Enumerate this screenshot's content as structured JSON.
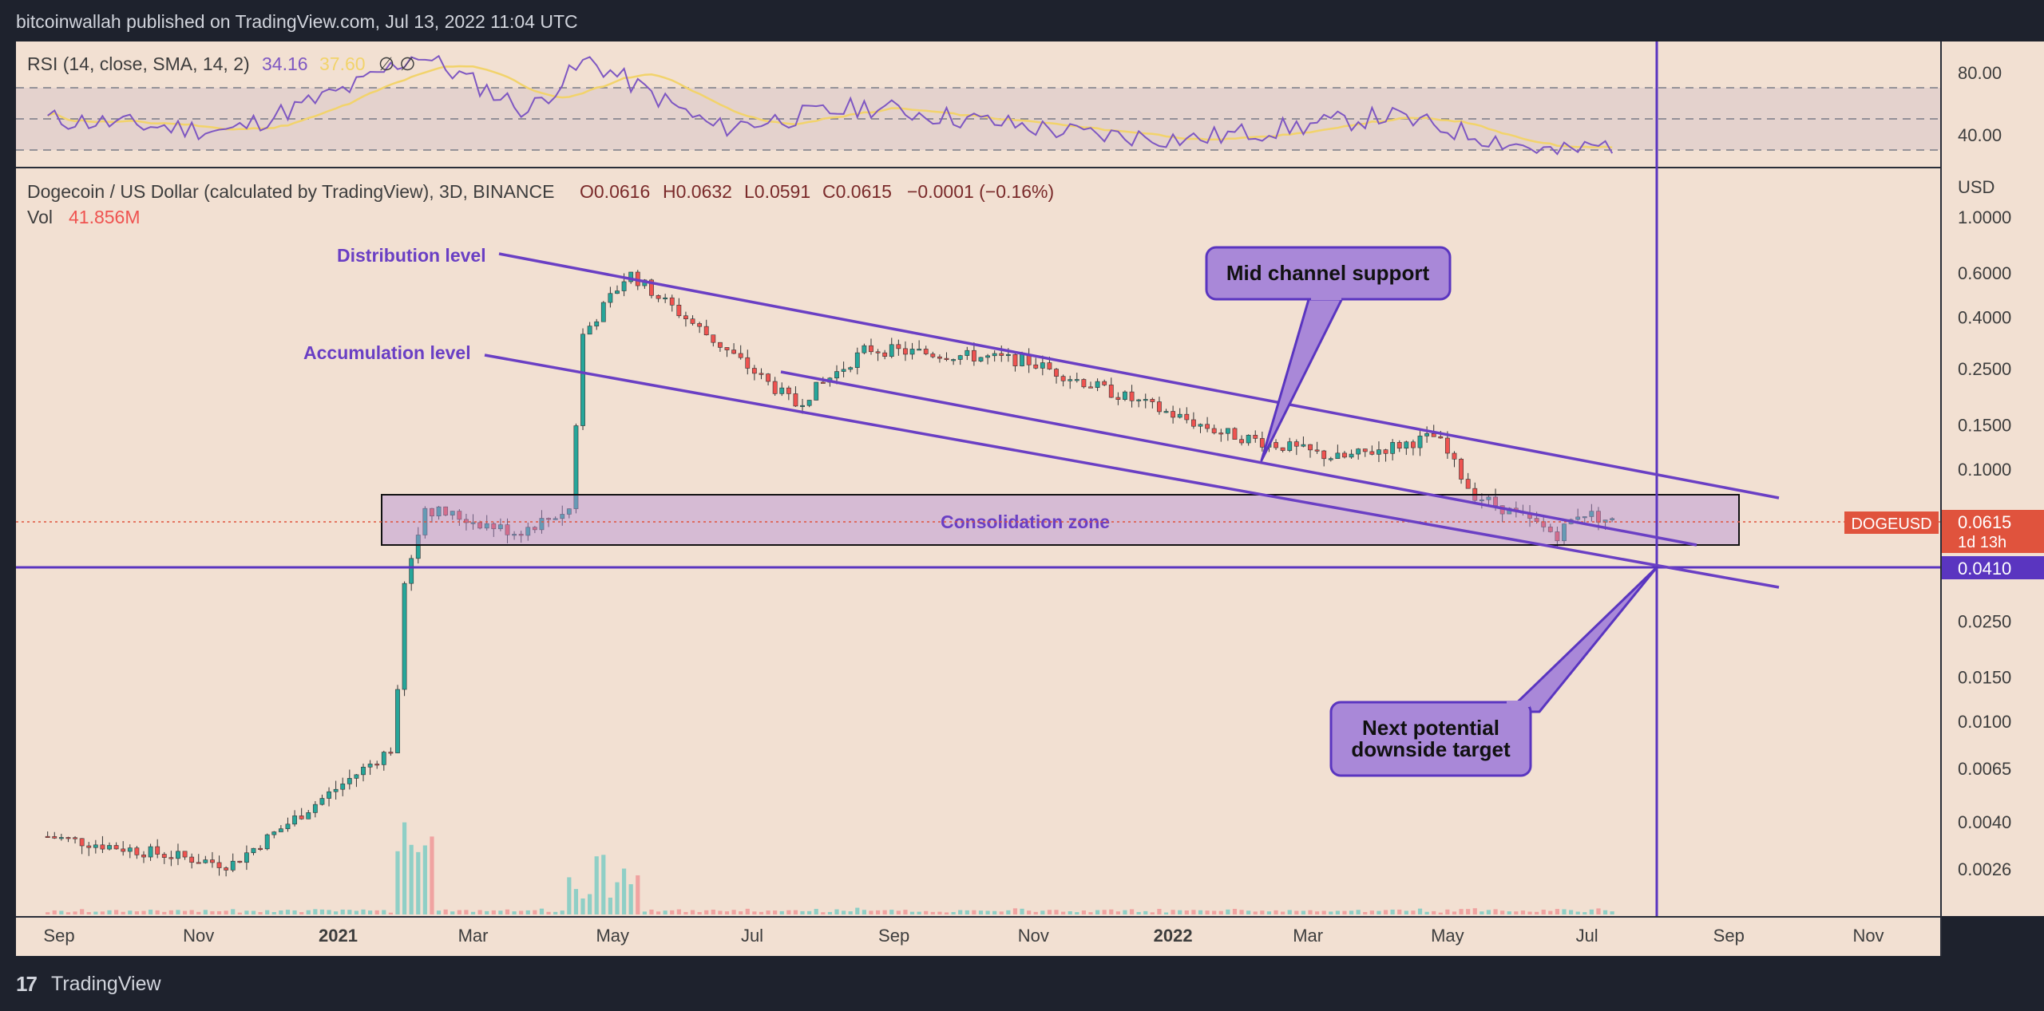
{
  "header": {
    "publisher": "bitcoinwallah published on TradingView.com, Jul 13, 2022 11:04 UTC"
  },
  "footer": {
    "brand": "TradingView"
  },
  "colors": {
    "background": "#f2e0d2",
    "channel": "#6a3fc4",
    "up": "#26a69a",
    "down": "#ef5350",
    "rsi": "#7e57c2",
    "rsi_sma": "#f2d36b",
    "price_tag": "#e0533d",
    "level_tag": "#5a35c0"
  },
  "rsi": {
    "legend_name": "RSI (14, close, SMA, 14, 2)",
    "legend_value": "34.16",
    "legend_sma": "37.60",
    "legend_extra": "∅ ∅",
    "ticks": [
      "80.00",
      "40.00"
    ],
    "levels": [
      70,
      50,
      30
    ]
  },
  "price": {
    "legend_symbol": "Dogecoin / US Dollar (calculated by TradingView), 3D, BINANCE",
    "legend_o": "O0.0616",
    "legend_h": "H0.0632",
    "legend_l": "L0.0591",
    "legend_c": "C0.0615",
    "legend_change": "−0.0001 (−0.16%)",
    "vol_label": "Vol",
    "vol_value": "41.856M",
    "currency": "USD",
    "current_symbol": "DOGEUSD",
    "current_price": "0.0615",
    "countdown": "1d 13h",
    "level_price": "0.0410"
  },
  "annotations": {
    "distribution": "Distribution level",
    "accumulation": "Accumulation level",
    "consolidation": "Consolidation zone",
    "mid_channel": "Mid channel support",
    "target_line1": "Next potential",
    "target_line2": "downside target"
  },
  "chart_data": {
    "type": "candlestick",
    "title": "Dogecoin / US Dollar (calculated by TradingView), 3D, BINANCE",
    "scale": "log",
    "y_ticks": [
      "1.0000",
      "0.6000",
      "0.4000",
      "0.2500",
      "0.1500",
      "0.1000",
      "0.0615",
      "0.0410",
      "0.0250",
      "0.0150",
      "0.0100",
      "0.0065",
      "0.0040",
      "0.0026"
    ],
    "x_ticks": [
      "Sep",
      "Nov",
      "2021",
      "Mar",
      "May",
      "Jul",
      "Sep",
      "Nov",
      "2022",
      "Mar",
      "May",
      "Jul",
      "Sep",
      "Nov"
    ],
    "key_points": [
      {
        "date": "2020-08-27",
        "close": 0.0035
      },
      {
        "date": "2020-11-15",
        "close": 0.0027
      },
      {
        "date": "2021-01-26",
        "close": 0.008
      },
      {
        "date": "2021-01-29",
        "close": 0.032
      },
      {
        "date": "2021-02-08",
        "close": 0.07
      },
      {
        "date": "2021-03-20",
        "close": 0.056
      },
      {
        "date": "2021-04-13",
        "close": 0.07
      },
      {
        "date": "2021-04-17",
        "close": 0.33
      },
      {
        "date": "2021-05-08",
        "close": 0.6
      },
      {
        "date": "2021-07-20",
        "close": 0.18
      },
      {
        "date": "2021-08-20",
        "close": 0.3
      },
      {
        "date": "2021-10-28",
        "close": 0.27
      },
      {
        "date": "2022-01-22",
        "close": 0.14
      },
      {
        "date": "2022-03-15",
        "close": 0.11
      },
      {
        "date": "2022-04-26",
        "close": 0.135
      },
      {
        "date": "2022-05-12",
        "close": 0.08
      },
      {
        "date": "2022-06-18",
        "close": 0.055
      },
      {
        "date": "2022-06-28",
        "close": 0.068
      },
      {
        "date": "2022-07-13",
        "close": 0.0615
      }
    ],
    "rsi_points": [
      {
        "date": "2020-08-27",
        "value": 50
      },
      {
        "date": "2020-11-15",
        "value": 42
      },
      {
        "date": "2021-01-10",
        "value": 72
      },
      {
        "date": "2021-02-05",
        "value": 92
      },
      {
        "date": "2021-03-25",
        "value": 55
      },
      {
        "date": "2021-04-20",
        "value": 88
      },
      {
        "date": "2021-06-15",
        "value": 44
      },
      {
        "date": "2021-08-20",
        "value": 58
      },
      {
        "date": "2021-11-25",
        "value": 40
      },
      {
        "date": "2022-01-10",
        "value": 37
      },
      {
        "date": "2022-04-05",
        "value": 52
      },
      {
        "date": "2022-06-18",
        "value": 28
      },
      {
        "date": "2022-07-13",
        "value": 34.16
      }
    ],
    "horizontal_levels": [
      0.041
    ],
    "consolidation_zone": [
      0.05,
      0.078
    ]
  }
}
